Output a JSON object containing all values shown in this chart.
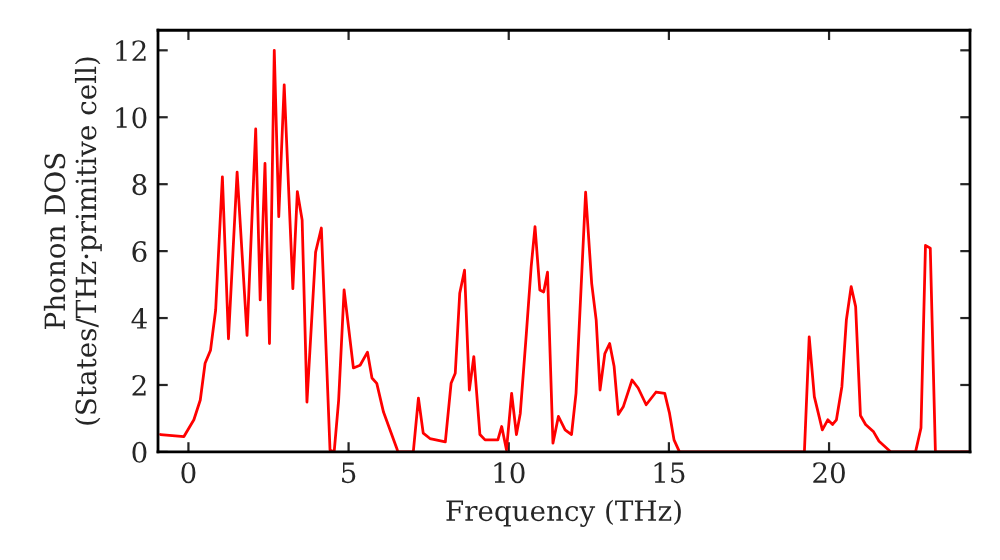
{
  "chart_data": {
    "type": "line",
    "xlabel": "Frequency (THz)",
    "ylabel": "Phonon DOS\n(States/THz·primitive cell)",
    "x": [
      -0.87,
      -0.14,
      0.17,
      0.37,
      0.52,
      0.69,
      0.85,
      1.06,
      1.25,
      1.52,
      1.83,
      2.1,
      2.24,
      2.39,
      2.53,
      2.68,
      2.82,
      2.99,
      3.26,
      3.4,
      3.55,
      3.7,
      3.97,
      4.15,
      4.42,
      4.55,
      4.69,
      4.86,
      5.15,
      5.36,
      5.59,
      5.73,
      5.88,
      6.09,
      6.5,
      6.54,
      7.02,
      7.18,
      7.33,
      7.54,
      8.02,
      8.2,
      8.33,
      8.47,
      8.62,
      8.77,
      8.91,
      9.1,
      9.26,
      9.66,
      9.78,
      9.93,
      10.09,
      10.24,
      10.36,
      10.55,
      10.7,
      10.82,
      10.97,
      11.09,
      11.21,
      11.38,
      11.55,
      11.76,
      11.96,
      12.1,
      12.26,
      12.4,
      12.59,
      12.73,
      12.85,
      13.0,
      13.15,
      13.29,
      13.42,
      13.58,
      13.85,
      14.04,
      14.29,
      14.6,
      14.87,
      15.02,
      15.16,
      15.33,
      19.23,
      19.38,
      19.54,
      19.79,
      19.96,
      20.11,
      20.23,
      20.4,
      20.54,
      20.69,
      20.83,
      20.98,
      21.14,
      21.39,
      21.56,
      21.93,
      22.7,
      22.87,
      23.01,
      23.16,
      23.32,
      24.36
    ],
    "series": [
      {
        "color": "#ff0000",
        "values": [
          0.52,
          0.46,
          0.96,
          1.55,
          2.65,
          3.04,
          4.24,
          8.22,
          3.38,
          8.36,
          3.48,
          9.65,
          4.54,
          8.62,
          3.24,
          12.0,
          7.03,
          10.97,
          4.88,
          7.78,
          6.93,
          1.49,
          5.97,
          6.69,
          0.06,
          0,
          1.55,
          4.84,
          2.51,
          2.59,
          2.98,
          2.21,
          2.05,
          1.19,
          0.12,
          0,
          0,
          1.61,
          0.56,
          0.4,
          0.3,
          2.05,
          2.35,
          4.74,
          5.43,
          1.85,
          2.85,
          0.52,
          0.36,
          0.36,
          0.76,
          0.06,
          1.75,
          0.52,
          1.15,
          3.54,
          5.53,
          6.73,
          4.84,
          4.78,
          5.37,
          0.26,
          1.06,
          0.66,
          0.52,
          1.75,
          4.94,
          7.76,
          5.03,
          3.94,
          1.85,
          2.94,
          3.24,
          2.55,
          1.12,
          1.36,
          2.15,
          1.91,
          1.41,
          1.79,
          1.75,
          1.15,
          0.36,
          0,
          0,
          3.44,
          1.65,
          0.66,
          0.96,
          0.82,
          0.96,
          1.95,
          3.94,
          4.94,
          4.34,
          1.09,
          0.82,
          0.6,
          0.32,
          0,
          0,
          0.72,
          6.17,
          6.09,
          0,
          0
        ]
      }
    ],
    "xlim": [
      -0.95,
      24.4
    ],
    "ylim": [
      0,
      12.6
    ],
    "xticks": [
      0,
      5,
      10,
      15,
      20
    ],
    "yticks": [
      0,
      2,
      4,
      6,
      8,
      10,
      12
    ],
    "grid": false,
    "marker": "none",
    "line_style": "solid"
  }
}
